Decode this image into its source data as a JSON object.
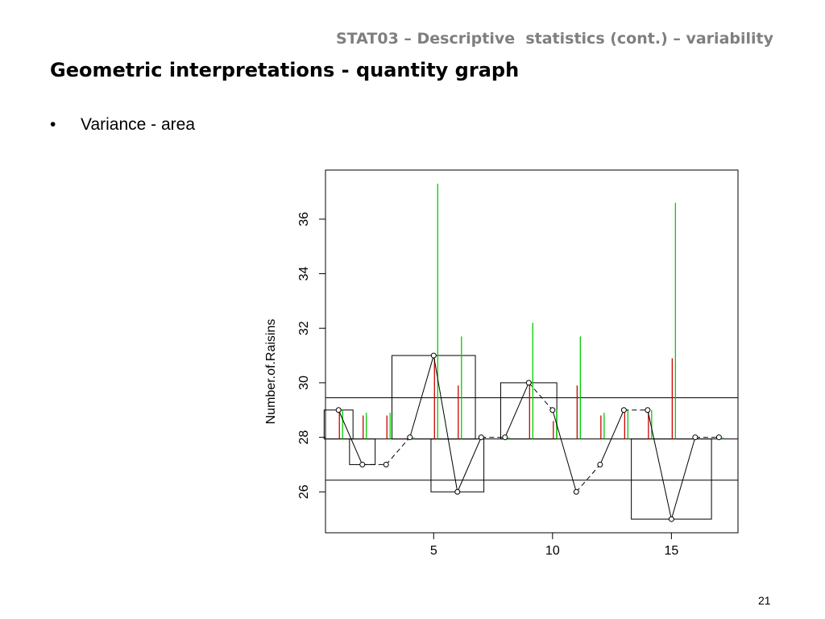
{
  "slide": {
    "course_title": "STAT03 – Descriptive  statistics (cont.) – variability",
    "title": "Geometric interpretations - quantity graph",
    "bullet_symbol": "•",
    "bullet_text": "Variance - area",
    "page_number": "21"
  },
  "chart_data": {
    "type": "scatter",
    "title": "",
    "xlabel": "",
    "ylabel": "Number.of.Raisins",
    "xlim": [
      0.45,
      17.8
    ],
    "ylim": [
      24.5,
      37.8
    ],
    "x_ticks": [
      5,
      10,
      15
    ],
    "y_ticks": [
      26,
      28,
      30,
      32,
      34,
      36
    ],
    "series": [
      {
        "x": [
          1,
          2,
          3,
          4,
          5,
          6,
          7,
          8,
          9,
          10,
          11,
          12,
          13,
          14,
          15,
          16,
          17
        ],
        "values": [
          29,
          27,
          27,
          28,
          31,
          26,
          28,
          28,
          30,
          29,
          26,
          27,
          29,
          29,
          25,
          28,
          28
        ]
      }
    ],
    "mean": 27.94,
    "sd_band": [
      26.43,
      29.45
    ],
    "rolling_mean": [
      29,
      28,
      27.67,
      27.5,
      28.4,
      28.17,
      28,
      28,
      28.22,
      28.3,
      28.09,
      28,
      28.08,
      28.14,
      27.93,
      27.94,
      27.94
    ],
    "green_segment_tops": [
      29.0,
      28.9,
      28.9,
      28.0,
      37.3,
      31.7,
      28.0,
      28.0,
      32.2,
      29.0,
      31.7,
      28.9,
      29.0,
      29.0,
      36.6,
      28.0,
      28.0
    ],
    "red_segment_tops": [
      29.0,
      28.8,
      28.8,
      28.0,
      30.9,
      29.9,
      28.0,
      28.0,
      30.0,
      28.6,
      29.9,
      28.8,
      28.9,
      28.9,
      30.9,
      28.0,
      28.0
    ],
    "colors": {
      "green": "#00cc00",
      "red": "#cc0000",
      "axis": "#000000"
    }
  }
}
